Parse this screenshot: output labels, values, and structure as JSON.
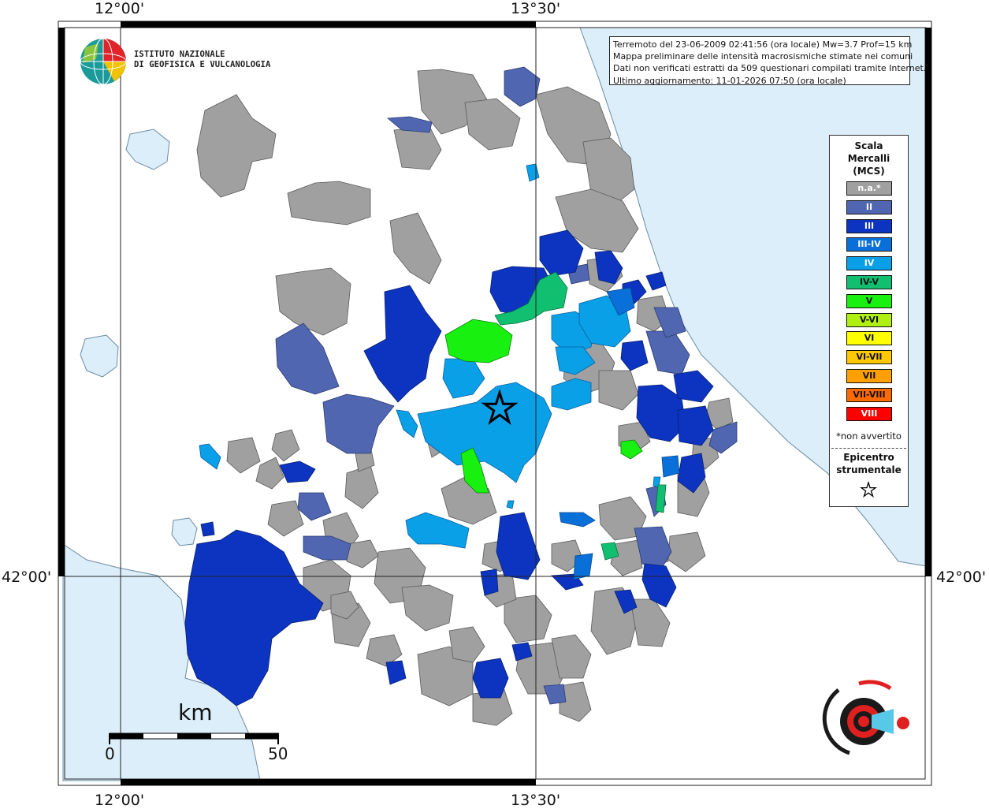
{
  "coords": {
    "top_left": "12°00'",
    "top_right": "13°30'",
    "bottom_left": "12°00'",
    "bottom_right": "13°30'",
    "left_lat": "42°00'",
    "right_lat": "42°00'"
  },
  "logo": {
    "line1": "ISTITUTO NAZIONALE",
    "line2": "DI GEOFISICA E VULCANOLOGIA"
  },
  "info": {
    "line1": "Terremoto del 23-06-2009 02:41:56 (ora locale) Mw=3.7 Prof=15 km",
    "line2": "Mappa preliminare delle intensità macrosismiche stimate nei comuni",
    "line3": "Dati non verificati estratti da 509 questionari compilati tramite Internet.",
    "line4": "Ultimo aggiornamento: 11-01-2026 07:50 (ora locale)"
  },
  "legend": {
    "title1": "Scala",
    "title2": "Mercalli",
    "title3": "(MCS)",
    "classes": [
      {
        "label": "n.a.*",
        "color": "#a0a0a0",
        "text": "#ffffff"
      },
      {
        "label": "II",
        "color": "#5066b0",
        "text": "#ffffff"
      },
      {
        "label": "III",
        "color": "#0c34c0",
        "text": "#ffffff"
      },
      {
        "label": "III-IV",
        "color": "#0870d8",
        "text": "#ffffff"
      },
      {
        "label": "IV",
        "color": "#0aa0e8",
        "text": "#ffffff"
      },
      {
        "label": "IV-V",
        "color": "#10c070",
        "text": "#111111"
      },
      {
        "label": "V",
        "color": "#18f010",
        "text": "#111111"
      },
      {
        "label": "V-VI",
        "color": "#b0f010",
        "text": "#111111"
      },
      {
        "label": "VI",
        "color": "#ffff00",
        "text": "#111111"
      },
      {
        "label": "VI-VII",
        "color": "#ffc800",
        "text": "#111111"
      },
      {
        "label": "VII",
        "color": "#ffa000",
        "text": "#111111"
      },
      {
        "label": "VII-VIII",
        "color": "#ff6a00",
        "text": "#111111"
      },
      {
        "label": "VIII",
        "color": "#ff0000",
        "text": "#ffffff"
      }
    ],
    "note": "*non avvertito",
    "epi1": "Epicentro",
    "epi2": "strumentale"
  },
  "scale": {
    "unit": "km",
    "min": "0",
    "max": "50"
  },
  "colors": {
    "sea": "#dceefa",
    "na": "#a0a0a0",
    "II": "#5066b0",
    "III": "#0c34c0",
    "IV": "#0aa0e8",
    "IV-V": "#10c070",
    "V": "#18f010"
  },
  "site_logo": "www.haisentitoilterremoto.it"
}
